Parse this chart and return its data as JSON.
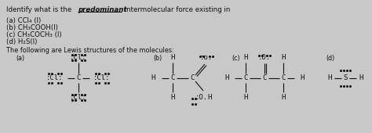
{
  "bg_color": "#c8c8c8",
  "text_color": "#111111",
  "figsize": [
    4.74,
    1.7
  ],
  "dpi": 100,
  "title_prefix": "Identify what is the ",
  "title_bold": "predominant",
  "title_suffix": " intermolecular force existing in",
  "list_items": [
    "(a) CCl₄ (l)",
    "(b) CH₃COOH(l)",
    "(c) CH₃COCH₃ (l)",
    "(d) H₂S(l)"
  ],
  "lewis_intro": "The following are Lewis structures of the molecules:",
  "section_labels": [
    "(a)",
    "(b)",
    "(c)",
    "(d)"
  ],
  "main_fs": 6.2,
  "small_fs": 5.8,
  "struct_fs": 6.5
}
